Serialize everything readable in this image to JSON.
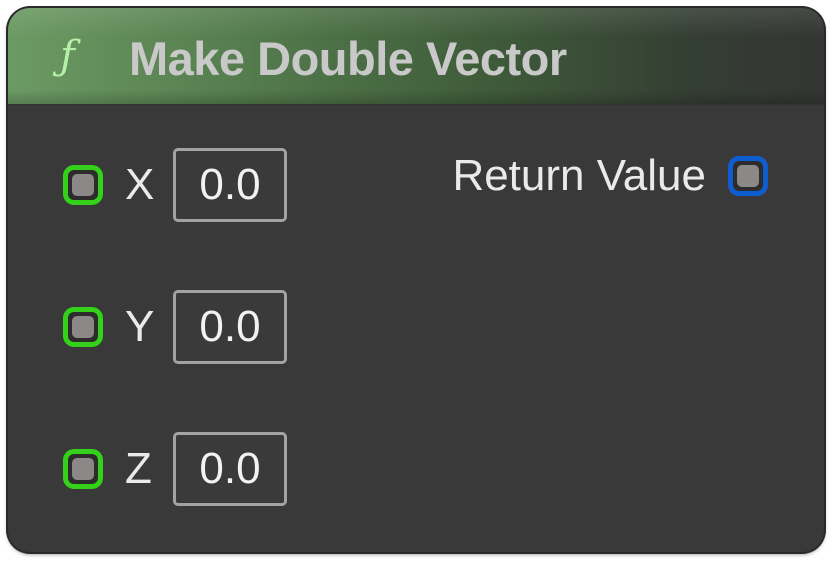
{
  "node": {
    "title": "Make Double Vector",
    "function_icon": "ƒ",
    "header_color": "#6c9a64",
    "input_pin_color": "#33d11a",
    "output_pin_color": "#0f5ed1"
  },
  "inputs": [
    {
      "label": "X",
      "value": "0.0"
    },
    {
      "label": "Y",
      "value": "0.0"
    },
    {
      "label": "Z",
      "value": "0.0"
    }
  ],
  "output": {
    "label": "Return Value"
  }
}
